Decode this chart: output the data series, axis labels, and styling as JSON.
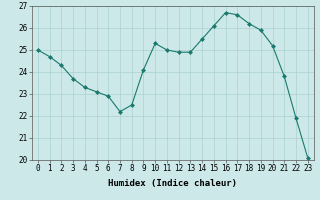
{
  "x": [
    0,
    1,
    2,
    3,
    4,
    5,
    6,
    7,
    8,
    9,
    10,
    11,
    12,
    13,
    14,
    15,
    16,
    17,
    18,
    19,
    20,
    21,
    22,
    23
  ],
  "y": [
    25.0,
    24.7,
    24.3,
    23.7,
    23.3,
    23.1,
    22.9,
    22.2,
    22.5,
    24.1,
    25.3,
    25.0,
    24.9,
    24.9,
    25.5,
    26.1,
    26.7,
    26.6,
    26.2,
    25.9,
    25.2,
    23.8,
    21.9,
    20.1
  ],
  "line_color": "#1a7a6e",
  "marker": "D",
  "marker_size": 2,
  "bg_color": "#cce8e8",
  "grid_color": "#aad0d0",
  "xlabel": "Humidex (Indice chaleur)",
  "ylim": [
    20,
    27
  ],
  "xlim_min": -0.5,
  "xlim_max": 23.5,
  "yticks": [
    20,
    21,
    22,
    23,
    24,
    25,
    26,
    27
  ],
  "xticks": [
    0,
    1,
    2,
    3,
    4,
    5,
    6,
    7,
    8,
    9,
    10,
    11,
    12,
    13,
    14,
    15,
    16,
    17,
    18,
    19,
    20,
    21,
    22,
    23
  ],
  "xlabel_fontsize": 6.5,
  "tick_fontsize": 5.5,
  "line_width": 0.8
}
